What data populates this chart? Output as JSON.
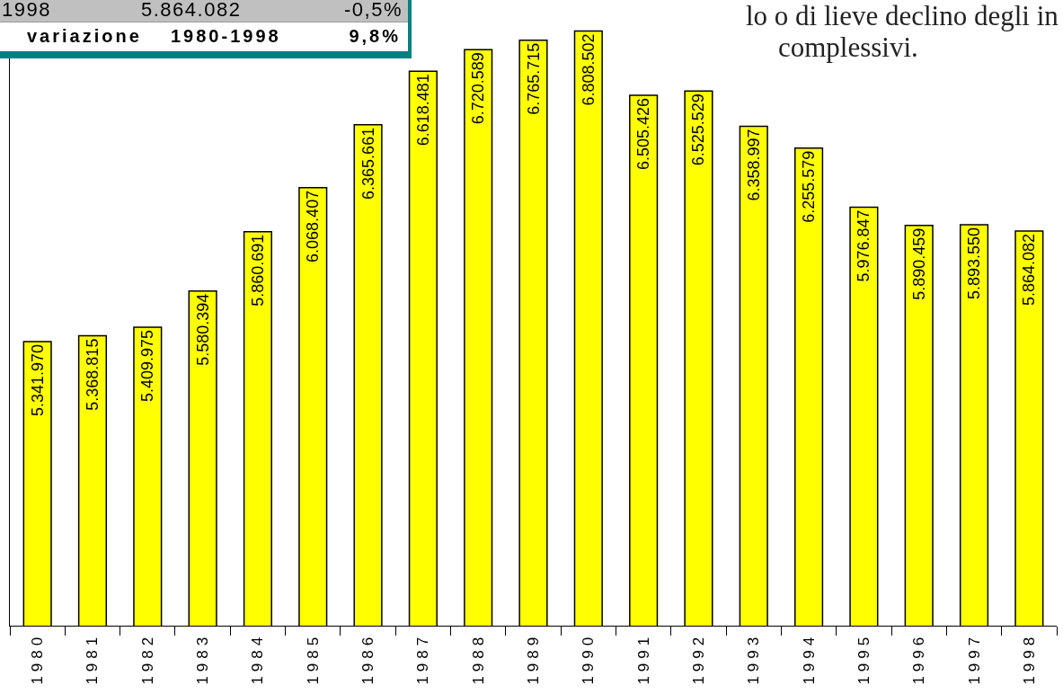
{
  "chart_data": {
    "type": "bar",
    "categories": [
      "1980",
      "1981",
      "1982",
      "1983",
      "1984",
      "1985",
      "1986",
      "1987",
      "1988",
      "1989",
      "1990",
      "1991",
      "1992",
      "1993",
      "1994",
      "1995",
      "1996",
      "1997",
      "1998"
    ],
    "values": [
      5341970,
      5368815,
      5409975,
      5580394,
      5860691,
      6068407,
      6365661,
      6618481,
      6720589,
      6765715,
      6808502,
      6505426,
      6525529,
      6358997,
      6255579,
      5976847,
      5890459,
      5893550,
      5864082
    ],
    "value_labels": [
      "5.341.970",
      "5.368.815",
      "5.409.975",
      "5.580.394",
      "5.860.691",
      "6.068.407",
      "6.365.661",
      "6.618.481",
      "6.720.589",
      "6.765.715",
      "6.808.502",
      "6.505.426",
      "6.525.529",
      "6.358.997",
      "6.255.579",
      "5.976.847",
      "5.890.459",
      "5.893.550",
      "5.864.082"
    ],
    "color": "#ffff00",
    "ylim": [
      4000000,
      6900000
    ],
    "tick_labels": "x",
    "annotations": [
      "1998",
      "5.864.082",
      "-0,5%",
      "variazione",
      "1980-1998",
      "9,8%",
      "lo o di lieve declino degli in",
      "complessivi."
    ]
  }
}
